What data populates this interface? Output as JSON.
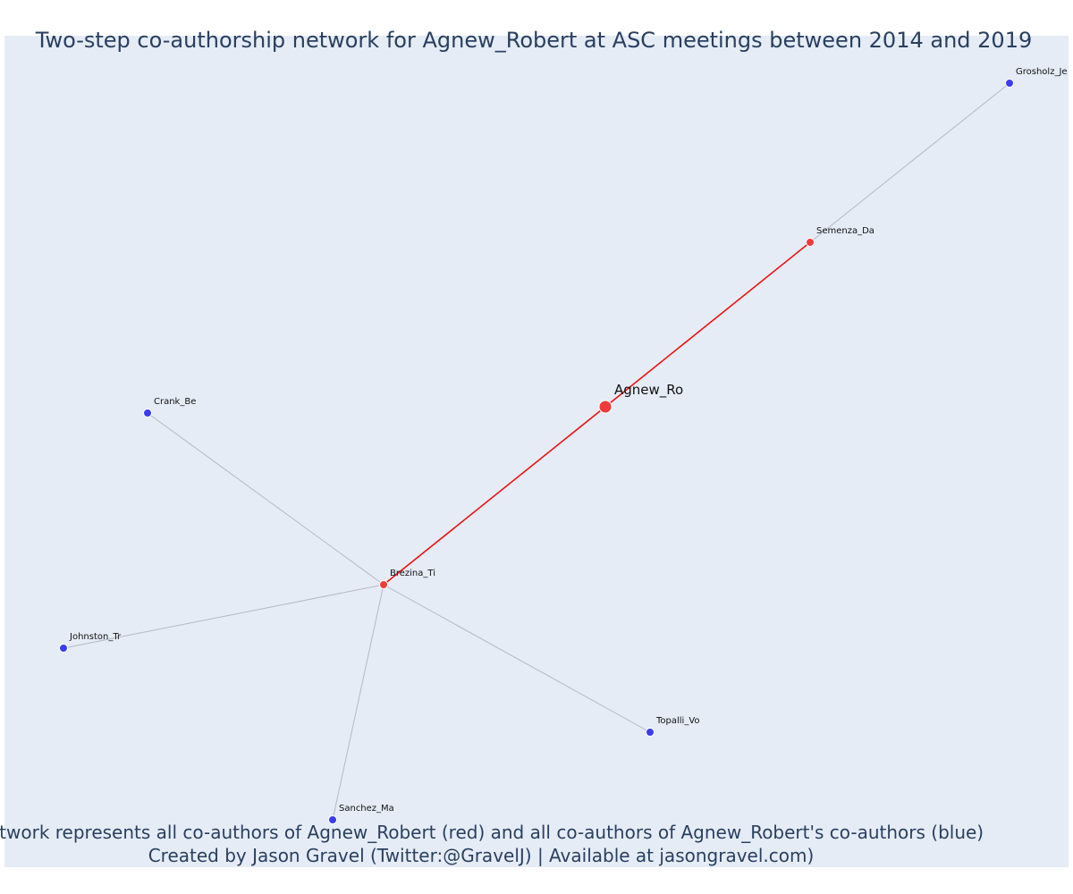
{
  "title": "Two-step co-authorship network for Agnew_Robert at ASC meetings between 2014 and 2019",
  "caption_line1": "Network represents all co-authors of Agnew_Robert (red) and all co-authors of Agnew_Robert's co-authors (blue)",
  "caption_line2": "Created by Jason Gravel (Twitter:@GravelJ) | Available at jasongravel.com)",
  "colors": {
    "background": "#e5ecf6",
    "red_node": "#ef3b3b",
    "blue_node": "#3b3bef",
    "red_edge": "#ee1111",
    "grey_edge": "#b5b8c6"
  },
  "nodes": [
    {
      "id": "Agnew_Ro",
      "group": "focal"
    },
    {
      "id": "Semenza_Da",
      "group": "coauthor"
    },
    {
      "id": "Brezina_Ti",
      "group": "coauthor"
    },
    {
      "id": "Grosholz_Je",
      "group": "second"
    },
    {
      "id": "Crank_Be",
      "group": "second"
    },
    {
      "id": "Johnston_Tr",
      "group": "second"
    },
    {
      "id": "Sanchez_Ma",
      "group": "second"
    },
    {
      "id": "Topalli_Vo",
      "group": "second"
    }
  ],
  "edges": [
    {
      "source": "Agnew_Ro",
      "target": "Semenza_Da",
      "type": "direct"
    },
    {
      "source": "Agnew_Ro",
      "target": "Brezina_Ti",
      "type": "direct"
    },
    {
      "source": "Semenza_Da",
      "target": "Grosholz_Je",
      "type": "indirect"
    },
    {
      "source": "Brezina_Ti",
      "target": "Crank_Be",
      "type": "indirect"
    },
    {
      "source": "Brezina_Ti",
      "target": "Johnston_Tr",
      "type": "indirect"
    },
    {
      "source": "Brezina_Ti",
      "target": "Sanchez_Ma",
      "type": "indirect"
    },
    {
      "source": "Brezina_Ti",
      "target": "Topalli_Vo",
      "type": "indirect"
    }
  ]
}
